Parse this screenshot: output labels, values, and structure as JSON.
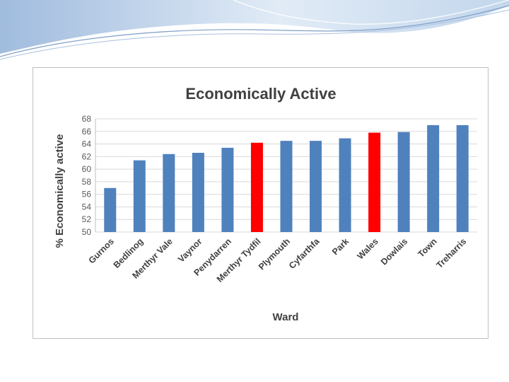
{
  "chart_data": {
    "type": "bar",
    "title": "Economically Active",
    "xlabel": "Ward",
    "ylabel": "% Economically active",
    "ylim": [
      50,
      68
    ],
    "yticks": [
      50,
      52,
      54,
      56,
      58,
      60,
      62,
      64,
      66,
      68
    ],
    "grid": true,
    "legend": "none",
    "categories": [
      "Gurnos",
      "Bedlinog",
      "Merthyr Vale",
      "Vaynor",
      "Penydarren",
      "Merthyr Tydfil",
      "Plymouth",
      "Cyfarthfa",
      "Park",
      "Wales",
      "Dowlais",
      "Town",
      "Treharris"
    ],
    "values": [
      57.0,
      61.4,
      62.4,
      62.6,
      63.4,
      64.2,
      64.5,
      64.5,
      64.9,
      65.8,
      65.9,
      67.0,
      67.0
    ],
    "bar_colors": [
      "#4f81bd",
      "#4f81bd",
      "#4f81bd",
      "#4f81bd",
      "#4f81bd",
      "#ff0000",
      "#4f81bd",
      "#4f81bd",
      "#4f81bd",
      "#ff0000",
      "#4f81bd",
      "#4f81bd",
      "#4f81bd"
    ]
  },
  "colors": {
    "bar_default": "#4f81bd",
    "bar_highlight": "#ff0000",
    "grid": "#d9d9d9",
    "header_wave": "#c6d9f1"
  }
}
